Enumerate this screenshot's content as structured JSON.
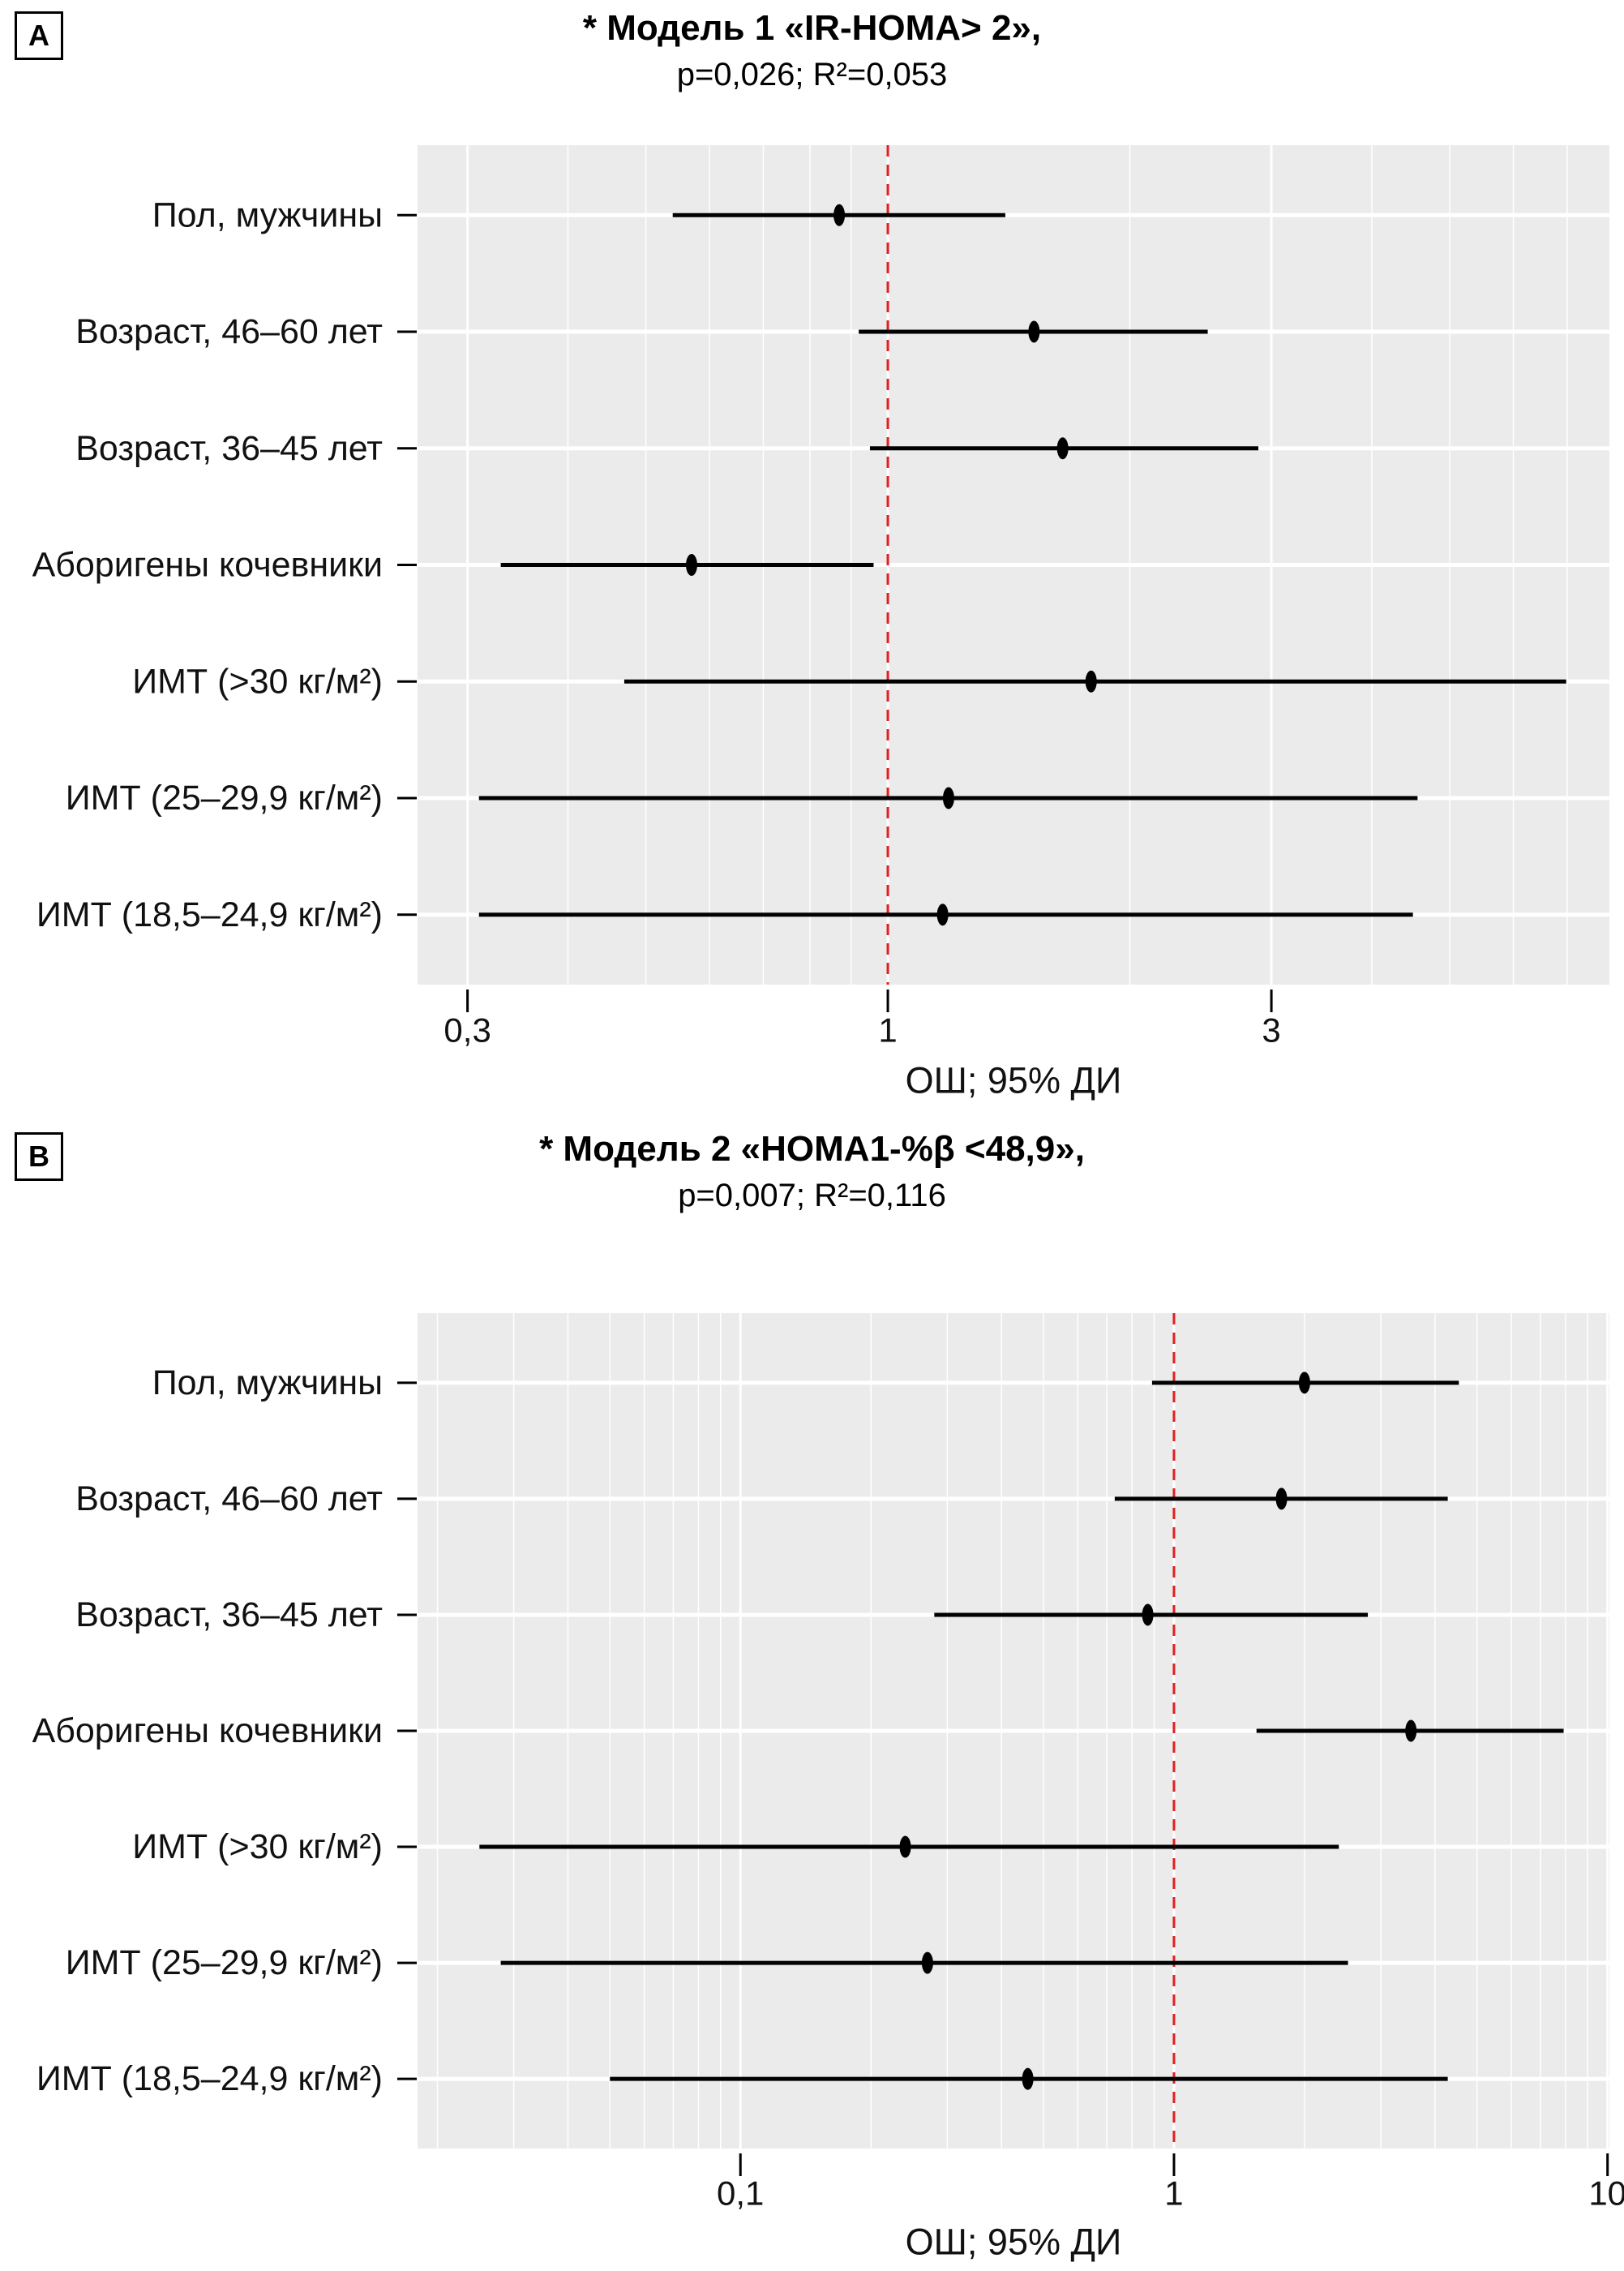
{
  "page": {
    "background": "#ffffff"
  },
  "panels": [
    {
      "badge": "A",
      "title": "* Модель 1 «IR-HOMA> 2»,",
      "subtitle": "p=0,026; R²=0,053"
    },
    {
      "badge": "B",
      "title": "* Модель 2 «HOMA1-%β <48,9»,",
      "subtitle": "p=0,007; R²=0,116"
    }
  ],
  "chart_data": [
    {
      "type": "scatter",
      "subtype": "forest-plot-log-x",
      "title": "* Модель 1 «IR-HOMA> 2», p=0,026; R²=0,053",
      "xlabel": "ОШ; 95% ДИ",
      "categories": [
        "Пол, мужчины",
        "Возраст, 46–60 лет",
        "Возраст, 36–45 лет",
        "Аборигены кочевники",
        "ИМТ (>30 кг/м²)",
        "ИМТ (25–29,9 кг/м²)",
        "ИМТ (18,5–24,9 кг/м²)"
      ],
      "series": [
        {
          "name": "ОШ (95% ДИ)",
          "or": [
            0.87,
            1.52,
            1.65,
            0.57,
            1.79,
            1.19,
            1.17
          ],
          "ci_low": [
            0.54,
            0.92,
            0.95,
            0.33,
            0.47,
            0.31,
            0.31
          ],
          "ci_high": [
            1.4,
            2.5,
            2.89,
            0.96,
            6.98,
            4.56,
            4.5
          ]
        }
      ],
      "xscale": "log",
      "xticks": [
        0.3,
        1,
        3
      ],
      "xticklabels": [
        "0,3",
        "1",
        "3"
      ],
      "xlim": [
        0.26,
        7.9
      ],
      "ref_line_x": 1,
      "grid": "on",
      "colors": {
        "plot_bg": "#ebebeb",
        "grid": "#ffffff",
        "ref_line": "#e02020",
        "data": "#000000"
      }
    },
    {
      "type": "scatter",
      "subtype": "forest-plot-log-x",
      "title": "* Модель 2 «HOMA1-%β <48,9», p=0,007; R²=0,116",
      "xlabel": "ОШ; 95% ДИ",
      "categories": [
        "Пол, мужчины",
        "Возраст, 46–60 лет",
        "Возраст, 36–45 лет",
        "Аборигены кочевники",
        "ИМТ (>30 кг/м²)",
        "ИМТ (25–29,9 кг/м²)",
        "ИМТ (18,5–24,9 кг/м²)"
      ],
      "series": [
        {
          "name": "ОШ (95% ДИ)",
          "or": [
            2.0,
            1.77,
            0.87,
            3.52,
            0.24,
            0.27,
            0.46
          ],
          "ci_low": [
            0.89,
            0.73,
            0.28,
            1.55,
            0.025,
            0.028,
            0.05
          ],
          "ci_high": [
            4.54,
            4.28,
            2.8,
            7.92,
            2.4,
            2.52,
            4.28
          ]
        }
      ],
      "xscale": "log",
      "xticks": [
        0.1,
        1,
        10
      ],
      "xticklabels": [
        "0,1",
        "1",
        "10"
      ],
      "xlim": [
        0.018,
        10.1
      ],
      "ref_line_x": 1,
      "grid": "on",
      "colors": {
        "plot_bg": "#ebebeb",
        "grid": "#ffffff",
        "ref_line": "#e02020",
        "data": "#000000"
      }
    }
  ]
}
